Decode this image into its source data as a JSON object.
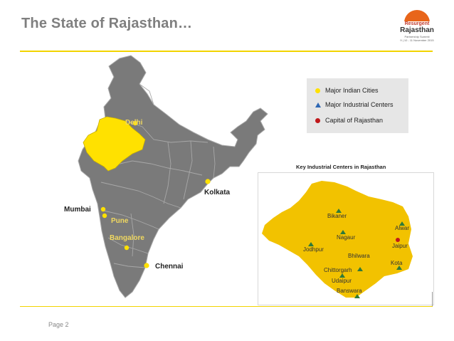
{
  "slide": {
    "title": "The State of Rajasthan…",
    "page_label": "Page 2"
  },
  "logo": {
    "line1": "Resurgent",
    "line2": "Rajasthan",
    "line3": "Partnership Summit",
    "line4": "9 | 10 - 11 November 2015"
  },
  "india_map": {
    "cities": [
      {
        "name": "Delhi"
      },
      {
        "name": "Kolkata"
      },
      {
        "name": "Mumbai"
      },
      {
        "name": "Pune"
      },
      {
        "name": "Bangalore"
      },
      {
        "name": "Chennai"
      }
    ],
    "colors": {
      "states": "#7a7a7a",
      "borders": "#a8a8a8",
      "rajasthan": "#ffe100",
      "city_dot": "#ffe100"
    }
  },
  "legend": {
    "items": [
      {
        "label": "Major Indian Cities",
        "symbol": "yellow-dot"
      },
      {
        "label": "Major Industrial Centers",
        "symbol": "blue-triangle"
      },
      {
        "label": "Capital of Rajasthan",
        "symbol": "red-dot"
      }
    ]
  },
  "rajasthan_map": {
    "title": "Key Industrial Centers in Rajasthan",
    "centers": [
      {
        "name": "Bikaner"
      },
      {
        "name": "Alwar"
      },
      {
        "name": "Nagaur"
      },
      {
        "name": "Jaipur"
      },
      {
        "name": "Jodhpur"
      },
      {
        "name": "Bhilwara"
      },
      {
        "name": "Kota"
      },
      {
        "name": "Chittorgarh"
      },
      {
        "name": "Udaipur"
      },
      {
        "name": "Banswara"
      }
    ],
    "colors": {
      "fill": "#f2c200",
      "triangle": "#2f7a3a",
      "capital": "#c0181b"
    }
  }
}
